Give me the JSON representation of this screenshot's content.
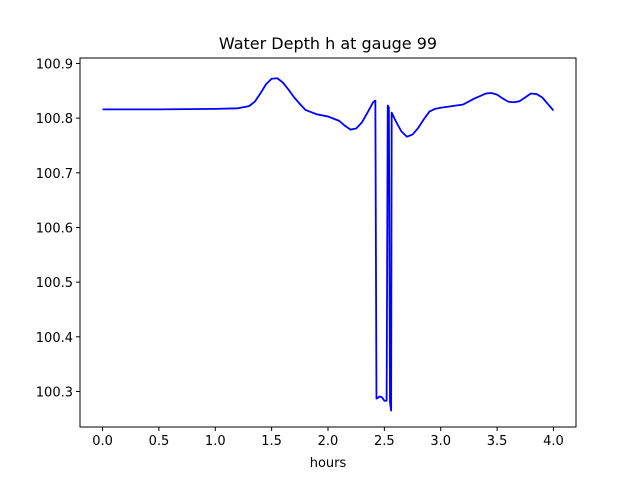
{
  "chart_data": {
    "type": "line",
    "title": "Water Depth h at gauge 99",
    "xlabel": "hours",
    "ylabel": "",
    "xlim": [
      -0.2,
      4.2
    ],
    "ylim": [
      100.235,
      100.91
    ],
    "xticks": [
      0.0,
      0.5,
      1.0,
      1.5,
      2.0,
      2.5,
      3.0,
      3.5,
      4.0
    ],
    "xtick_labels": [
      "0.0",
      "0.5",
      "1.0",
      "1.5",
      "2.0",
      "2.5",
      "3.0",
      "3.5",
      "4.0"
    ],
    "yticks": [
      100.3,
      100.4,
      100.5,
      100.6,
      100.7,
      100.8,
      100.9
    ],
    "ytick_labels": [
      "100.3",
      "100.4",
      "100.5",
      "100.6",
      "100.7",
      "100.8",
      "100.9"
    ],
    "grid": false,
    "color": "#0000ff",
    "series": [
      {
        "x": [
          0.0,
          0.5,
          1.0,
          1.2,
          1.3,
          1.35,
          1.4,
          1.45,
          1.5,
          1.55,
          1.6,
          1.65,
          1.7,
          1.75,
          1.8,
          1.9,
          2.0,
          2.1,
          2.15,
          2.2,
          2.25,
          2.3,
          2.35,
          2.4,
          2.42,
          2.43,
          2.44,
          2.46,
          2.48,
          2.5,
          2.52,
          2.53,
          2.54,
          2.55,
          2.56,
          2.565,
          2.57,
          2.6,
          2.65,
          2.7,
          2.75,
          2.8,
          2.85,
          2.9,
          2.95,
          3.0,
          3.1,
          3.2,
          3.3,
          3.4,
          3.45,
          3.5,
          3.55,
          3.6,
          3.65,
          3.7,
          3.75,
          3.8,
          3.85,
          3.9,
          3.95,
          4.0
        ],
        "y": [
          100.816,
          100.816,
          100.817,
          100.818,
          100.822,
          100.83,
          100.845,
          100.862,
          100.872,
          100.873,
          100.865,
          100.852,
          100.838,
          100.826,
          100.815,
          100.807,
          100.803,
          100.795,
          100.786,
          100.779,
          100.781,
          100.792,
          100.81,
          100.829,
          100.832,
          100.287,
          100.288,
          100.291,
          100.289,
          100.283,
          100.283,
          100.823,
          100.82,
          100.28,
          100.265,
          100.81,
          100.808,
          100.795,
          100.776,
          100.766,
          100.77,
          100.782,
          100.798,
          100.812,
          100.817,
          100.819,
          100.822,
          100.825,
          100.836,
          100.845,
          100.846,
          100.843,
          100.836,
          100.83,
          100.829,
          100.831,
          100.838,
          100.845,
          100.844,
          100.838,
          100.826,
          100.814
        ]
      }
    ]
  }
}
